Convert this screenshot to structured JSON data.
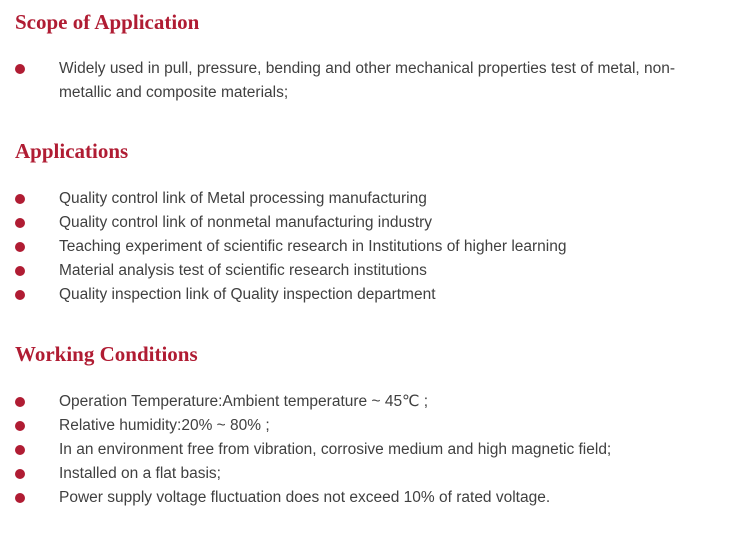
{
  "colors": {
    "accent": "#b01c33",
    "text": "#404040"
  },
  "sections": [
    {
      "title": "Scope of Application",
      "items": [
        "Widely used in pull, pressure, bending and other mechanical properties test of metal, non-metallic and composite materials;"
      ]
    },
    {
      "title": "Applications",
      "items": [
        "Quality control link of Metal processing manufacturing",
        "Quality control link of nonmetal manufacturing industry",
        "Teaching experiment of scientific research in Institutions of higher learning",
        "Material analysis test of scientific research institutions",
        "Quality inspection link of Quality inspection department"
      ]
    },
    {
      "title": "Working Conditions",
      "items": [
        "Operation Temperature:Ambient temperature ~ 45℃ ;",
        "Relative humidity:20% ~ 80% ;",
        "In an environment free from vibration, corrosive medium and high magnetic field;",
        "Installed on a flat basis;",
        "Power supply voltage fluctuation does not exceed 10% of rated voltage."
      ]
    }
  ]
}
